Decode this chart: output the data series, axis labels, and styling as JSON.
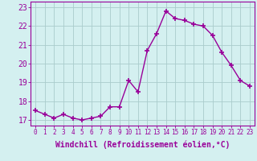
{
  "x": [
    0,
    1,
    2,
    3,
    4,
    5,
    6,
    7,
    8,
    9,
    10,
    11,
    12,
    13,
    14,
    15,
    16,
    17,
    18,
    19,
    20,
    21,
    22,
    23
  ],
  "y": [
    17.5,
    17.3,
    17.1,
    17.3,
    17.1,
    17.0,
    17.1,
    17.2,
    17.7,
    17.7,
    19.1,
    18.5,
    20.7,
    21.6,
    22.8,
    22.4,
    22.3,
    22.1,
    22.0,
    21.5,
    20.6,
    19.9,
    19.1,
    18.8
  ],
  "line_color": "#990099",
  "marker": "+",
  "markersize": 4,
  "markeredgewidth": 1.2,
  "linewidth": 1.0,
  "xlabel": "Windchill (Refroidissement éolien,°C)",
  "xlabel_fontsize": 7,
  "ylabel_ticks": [
    17,
    18,
    19,
    20,
    21,
    22,
    23
  ],
  "xtick_labels": [
    "0",
    "1",
    "2",
    "3",
    "4",
    "5",
    "6",
    "7",
    "8",
    "9",
    "10",
    "11",
    "12",
    "13",
    "14",
    "15",
    "16",
    "17",
    "18",
    "19",
    "20",
    "21",
    "22",
    "23"
  ],
  "ylim": [
    16.7,
    23.3
  ],
  "xlim": [
    -0.5,
    23.5
  ],
  "bg_color": "#d4f0f0",
  "grid_color": "#aacccc",
  "tick_color": "#990099",
  "label_color": "#990099",
  "ytick_fontsize": 7,
  "xtick_fontsize": 5.5
}
